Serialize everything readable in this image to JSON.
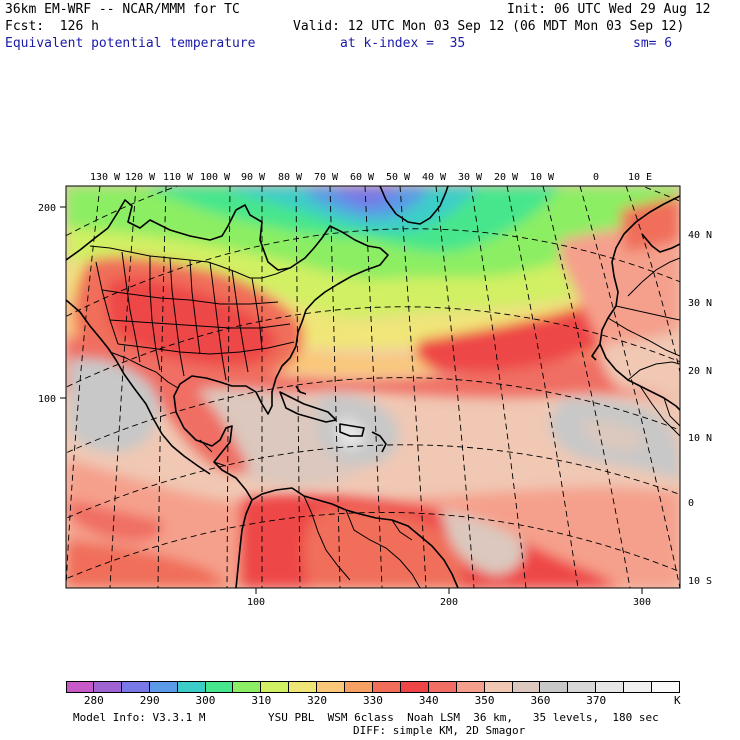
{
  "header": {
    "line1_left": "36km EM-WRF -- NCAR/MMM for TC",
    "line1_right": "Init: 06 UTC Wed 29 Aug 12",
    "line2_left": "Fcst:  126 h",
    "line2_right": "Valid: 12 UTC Mon 03 Sep 12 (06 MDT Mon 03 Sep 12)",
    "line3_field": "Equivalent potential temperature",
    "line3_level": "at k-index =  35",
    "line3_sm": "sm= 6"
  },
  "map": {
    "lon_labels": [
      "130 W",
      "120 W",
      "110 W",
      "100 W",
      "90 W",
      "80 W",
      "70 W",
      "60 W",
      "50 W",
      "40 W",
      "30 W",
      "20 W",
      "10 W",
      "0",
      "10 E"
    ],
    "lat_labels": [
      "40 N",
      "30 N",
      "20 N",
      "10 N",
      "0",
      "10 S"
    ],
    "grid_y_labels": [
      "200",
      "100"
    ],
    "grid_x_labels": [
      "100",
      "200",
      "300"
    ]
  },
  "colorbar": {
    "labels": [
      "280",
      "290",
      "300",
      "310",
      "320",
      "330",
      "340",
      "350",
      "360",
      "370"
    ],
    "unit": "K",
    "colors": [
      "#c85ac8",
      "#a064d2",
      "#7878e6",
      "#5a9ae6",
      "#3ccdc8",
      "#46e68c",
      "#8cee64",
      "#d2f064",
      "#f0e678",
      "#fac878",
      "#f6a064",
      "#f06e5a",
      "#ee4646",
      "#f06e64",
      "#f5a08c",
      "#f0c8b4",
      "#dcc8be",
      "#c8c8c8",
      "#d7d7d7",
      "#e6e6e6",
      "#f0f0f0",
      "#fafafa"
    ]
  },
  "footer": {
    "model_info": "Model Info: V3.3.1 M",
    "physics_1": "YSU PBL  WSM 6class  Noah LSM  36 km,   35 levels,  180 sec",
    "physics_2": "DIFF: simple KM, 2D Smagor"
  }
}
